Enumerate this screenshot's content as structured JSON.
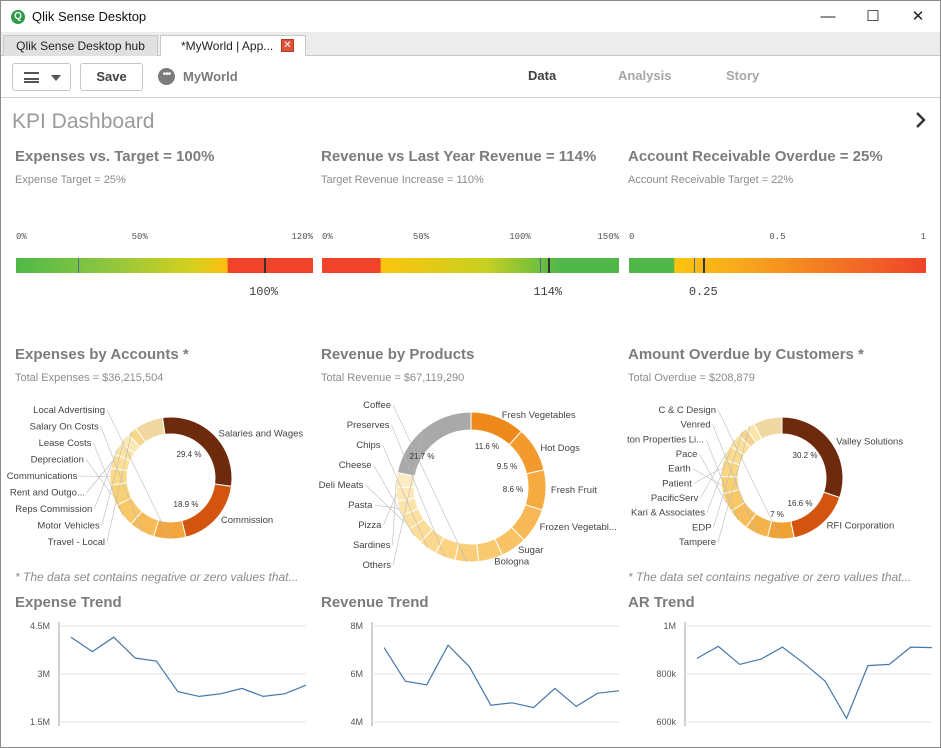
{
  "window": {
    "title": "Qlik Sense Desktop",
    "minimize": "—",
    "maximize": "☐",
    "close": "✕",
    "app_icon": "Q"
  },
  "tabs": [
    {
      "label": "Qlik Sense Desktop hub"
    },
    {
      "label": "*MyWorld | App..."
    }
  ],
  "toolbar": {
    "save_label": "Save",
    "app_name": "MyWorld",
    "nav": [
      "Data",
      "Analysis",
      "Story"
    ],
    "active_nav": "Data"
  },
  "sheet": {
    "title": "KPI Dashboard"
  },
  "gauges": [
    {
      "title": "Expenses vs. Target = 100%",
      "subtitle": "Expense Target = 25%",
      "ticks": [
        "0%",
        "50%",
        "120%"
      ],
      "tick_values": [
        0,
        0.5,
        1.2
      ],
      "max": 1.2,
      "value": 1.0,
      "value_label": "100%",
      "target": 0.25
    },
    {
      "title": "Revenue vs Last Year Revenue = 114%",
      "subtitle": "Target Revenue Increase = 110%",
      "ticks": [
        "0%",
        "50%",
        "100%",
        "150%"
      ],
      "tick_values": [
        0,
        0.5,
        1.0,
        1.5
      ],
      "max": 1.5,
      "value": 1.14,
      "value_label": "114%",
      "target": 1.1
    },
    {
      "title": "Account Receivable Overdue = 25%",
      "subtitle": "Account Receivable Target = 22%",
      "ticks": [
        "0",
        "0.5",
        "1"
      ],
      "tick_values": [
        0,
        0.5,
        1
      ],
      "max": 1,
      "value": 0.25,
      "value_label": "0.25",
      "target": 0.22
    }
  ],
  "donuts": [
    {
      "title": "Expenses by Accounts *",
      "subtitle": "Total Expenses = $36,215,504",
      "footnote": "* The data set contains negative or zero values that...",
      "segments": [
        {
          "label": "Salaries and Wages",
          "value": 29.4,
          "color": "#6e2a0c"
        },
        {
          "label": "Commission",
          "value": 18.9,
          "color": "#d2540f"
        },
        {
          "label": "Local Advertising",
          "value": 8.5,
          "color": "#f2a53c"
        },
        {
          "label": "Salary On Costs",
          "value": 6.8,
          "color": "#f6bb57"
        },
        {
          "label": "Lease Costs",
          "value": 6.2,
          "color": "#f8c866"
        },
        {
          "label": "Depreciation",
          "value": 5.6,
          "color": "#f9d175"
        },
        {
          "label": "Communications",
          "value": 4.4,
          "color": "#fad884"
        },
        {
          "label": "Rent and Outgo...",
          "value": 3.8,
          "color": "#fbdf95"
        },
        {
          "label": "Reps Commission",
          "value": 3.2,
          "color": "#fce3a3"
        },
        {
          "label": "Motor Vehicles",
          "value": 3.0,
          "color": "#fce8b2"
        },
        {
          "label": "Travel - Local",
          "value": 2.6,
          "color": "#f7d78a"
        },
        {
          "label": "",
          "value": 7.6,
          "color": "#f0d8a0"
        }
      ],
      "pct_labels": [
        "29.4 %",
        "18.9 %"
      ]
    },
    {
      "title": "Revenue by Products",
      "subtitle": "Total Revenue = $67,119,290",
      "footnote": "",
      "segments": [
        {
          "label": "Fresh Vegetables",
          "value": 11.6,
          "color": "#ee8a1c"
        },
        {
          "label": "Hot Dogs",
          "value": 9.5,
          "color": "#f29a2e"
        },
        {
          "label": "Fresh Fruit",
          "value": 8.6,
          "color": "#f5ab3f"
        },
        {
          "label": "Frozen Vegetabl...",
          "value": 7.4,
          "color": "#f7b957"
        },
        {
          "label": "Sugar",
          "value": 5.6,
          "color": "#f8c265"
        },
        {
          "label": "Bologna",
          "value": 5.2,
          "color": "#f9c96f"
        },
        {
          "label": "Coffee",
          "value": 5.0,
          "color": "#face79"
        },
        {
          "label": "Preserves",
          "value": 4.4,
          "color": "#fbd383"
        },
        {
          "label": "Chips",
          "value": 3.9,
          "color": "#fbd88d"
        },
        {
          "label": "Cheese",
          "value": 3.6,
          "color": "#fcdc97"
        },
        {
          "label": "Deli Meats",
          "value": 3.3,
          "color": "#fce0a1"
        },
        {
          "label": "Pasta",
          "value": 3.1,
          "color": "#fde4ab"
        },
        {
          "label": "Pizza",
          "value": 3.0,
          "color": "#fde8b6"
        },
        {
          "label": "Sardines",
          "value": 3.1,
          "color": "#fdecc1"
        },
        {
          "label": "Others",
          "value": 21.7,
          "color": "#a9a9a9"
        }
      ],
      "pct_labels": [
        "11.6 %",
        "9.5 %",
        "8.6 %",
        "21.7 %"
      ]
    },
    {
      "title": "Amount Overdue by Customers *",
      "subtitle": "Total Overdue = $208,879",
      "footnote": "* The data set contains negative or zero values that...",
      "segments": [
        {
          "label": "Valley Solutions",
          "value": 30.2,
          "color": "#6e2a0c"
        },
        {
          "label": "RFI Corporation",
          "value": 16.6,
          "color": "#d2540f"
        },
        {
          "label": "C & C Design",
          "value": 7.0,
          "color": "#f0a133"
        },
        {
          "label": "Venred",
          "value": 6.2,
          "color": "#f4b24a"
        },
        {
          "label": "Sifton Properties Li...",
          "value": 5.8,
          "color": "#f6bd58"
        },
        {
          "label": "Pace",
          "value": 5.0,
          "color": "#f8c766"
        },
        {
          "label": "Earth",
          "value": 4.6,
          "color": "#f9cf73"
        },
        {
          "label": "Patient",
          "value": 4.4,
          "color": "#fad580"
        },
        {
          "label": "PacificServ",
          "value": 4.0,
          "color": "#fbdb8d"
        },
        {
          "label": "Kari & Associates",
          "value": 3.6,
          "color": "#fbe09a"
        },
        {
          "label": "EDP",
          "value": 2.6,
          "color": "#f4d390"
        },
        {
          "label": "Tampere",
          "value": 2.4,
          "color": "#fce5a8"
        },
        {
          "label": "",
          "value": 7.6,
          "color": "#efd8a2"
        }
      ],
      "pct_labels": [
        "30.2 %",
        "16.6 %",
        "7 %"
      ]
    }
  ],
  "chart_data": [
    {
      "type": "line",
      "title": "Expense Trend",
      "yticks": [
        "4.5M",
        "3M",
        "1.5M"
      ],
      "ytick_values": [
        4.5,
        3,
        1.5
      ],
      "ylim": [
        1.5,
        4.5
      ],
      "unit": "M",
      "series": [
        {
          "values": [
            4.15,
            3.7,
            4.15,
            3.5,
            3.4,
            2.45,
            2.3,
            2.38,
            2.55,
            2.3,
            2.38,
            2.65
          ]
        }
      ]
    },
    {
      "type": "line",
      "title": "Revenue Trend",
      "yticks": [
        "8M",
        "6M",
        "4M"
      ],
      "ytick_values": [
        8,
        6,
        4
      ],
      "ylim": [
        4,
        8
      ],
      "unit": "M",
      "series": [
        {
          "values": [
            7.1,
            5.7,
            5.55,
            7.2,
            6.3,
            4.7,
            4.8,
            4.6,
            5.4,
            4.65,
            5.2,
            5.3
          ]
        }
      ]
    },
    {
      "type": "line",
      "title": "AR Trend",
      "yticks": [
        "1M",
        "800k",
        "600k"
      ],
      "ytick_values": [
        1000,
        800,
        600
      ],
      "ylim": [
        600,
        1000
      ],
      "unit": "k",
      "series": [
        {
          "values": [
            865,
            915,
            840,
            862,
            912,
            845,
            770,
            615,
            835,
            840,
            912,
            910
          ]
        }
      ]
    }
  ],
  "colors": {
    "accent_red": "#f0432a",
    "accent_green": "#50b848",
    "line_blue": "#4477aa"
  }
}
